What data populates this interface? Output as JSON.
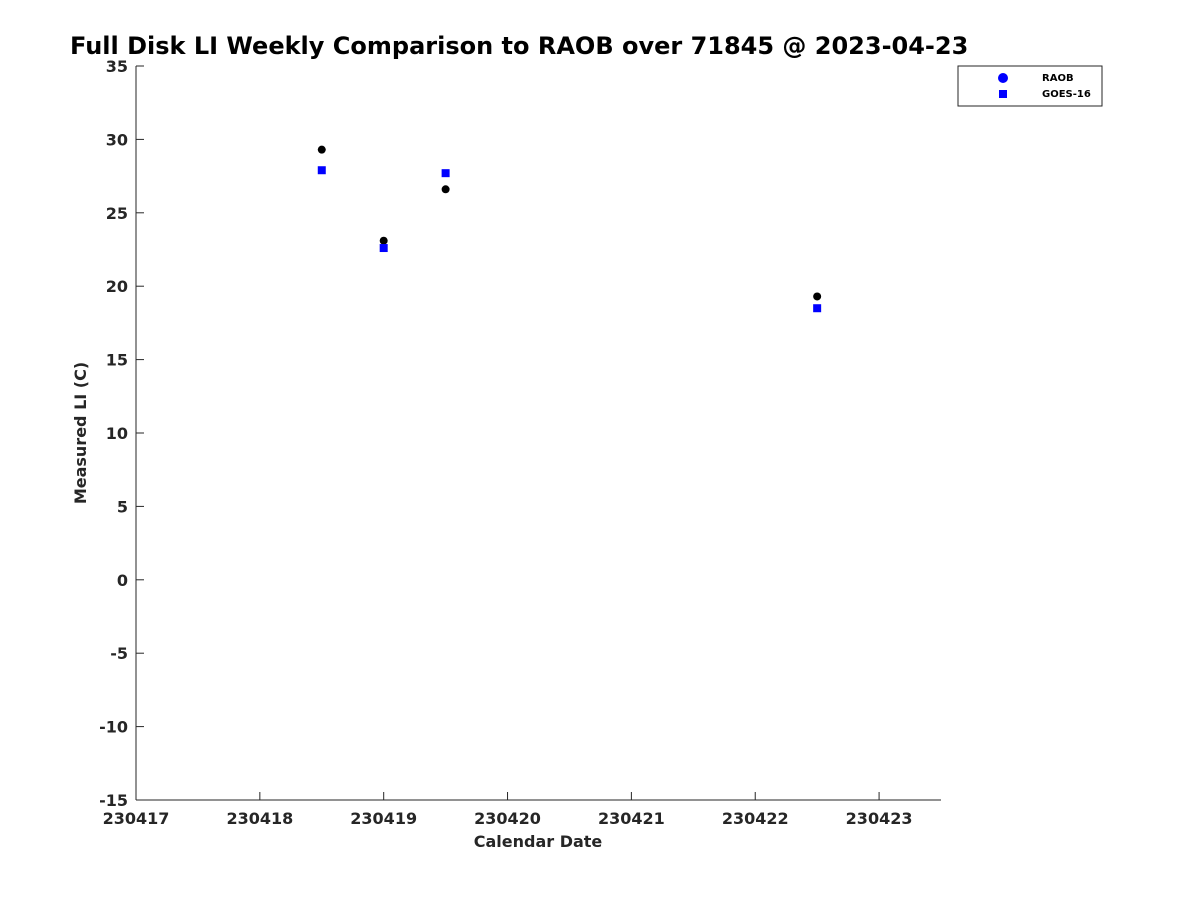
{
  "chart_data": {
    "type": "scatter",
    "title": "Full Disk LI Weekly Comparison to RAOB over 71845 @ 2023-04-23",
    "xlabel": "Calendar Date",
    "ylabel": "Measured LI (C)",
    "xlim": [
      230417,
      230423.5
    ],
    "ylim": [
      -15,
      35
    ],
    "xticks": [
      "230417",
      "230418",
      "230419",
      "230420",
      "230421",
      "230422",
      "230423"
    ],
    "yticks": [
      "35",
      "30",
      "25",
      "20",
      "15",
      "10",
      "5",
      "0",
      "-5",
      "-10",
      "-15"
    ],
    "grid": false,
    "legend_position": "top-right",
    "series": [
      {
        "name": "RAOB",
        "marker": "circle",
        "color": "#000000",
        "legend_color": "#0000ff",
        "x": [
          230418.5,
          230419.0,
          230419.5,
          230422.5
        ],
        "y": [
          29.3,
          23.1,
          26.6,
          19.3
        ]
      },
      {
        "name": "GOES-16",
        "marker": "square",
        "color": "#0000ff",
        "legend_color": "#0000ff",
        "x": [
          230418.5,
          230419.0,
          230419.5,
          230422.5
        ],
        "y": [
          27.9,
          22.6,
          27.7,
          18.5
        ]
      }
    ]
  }
}
